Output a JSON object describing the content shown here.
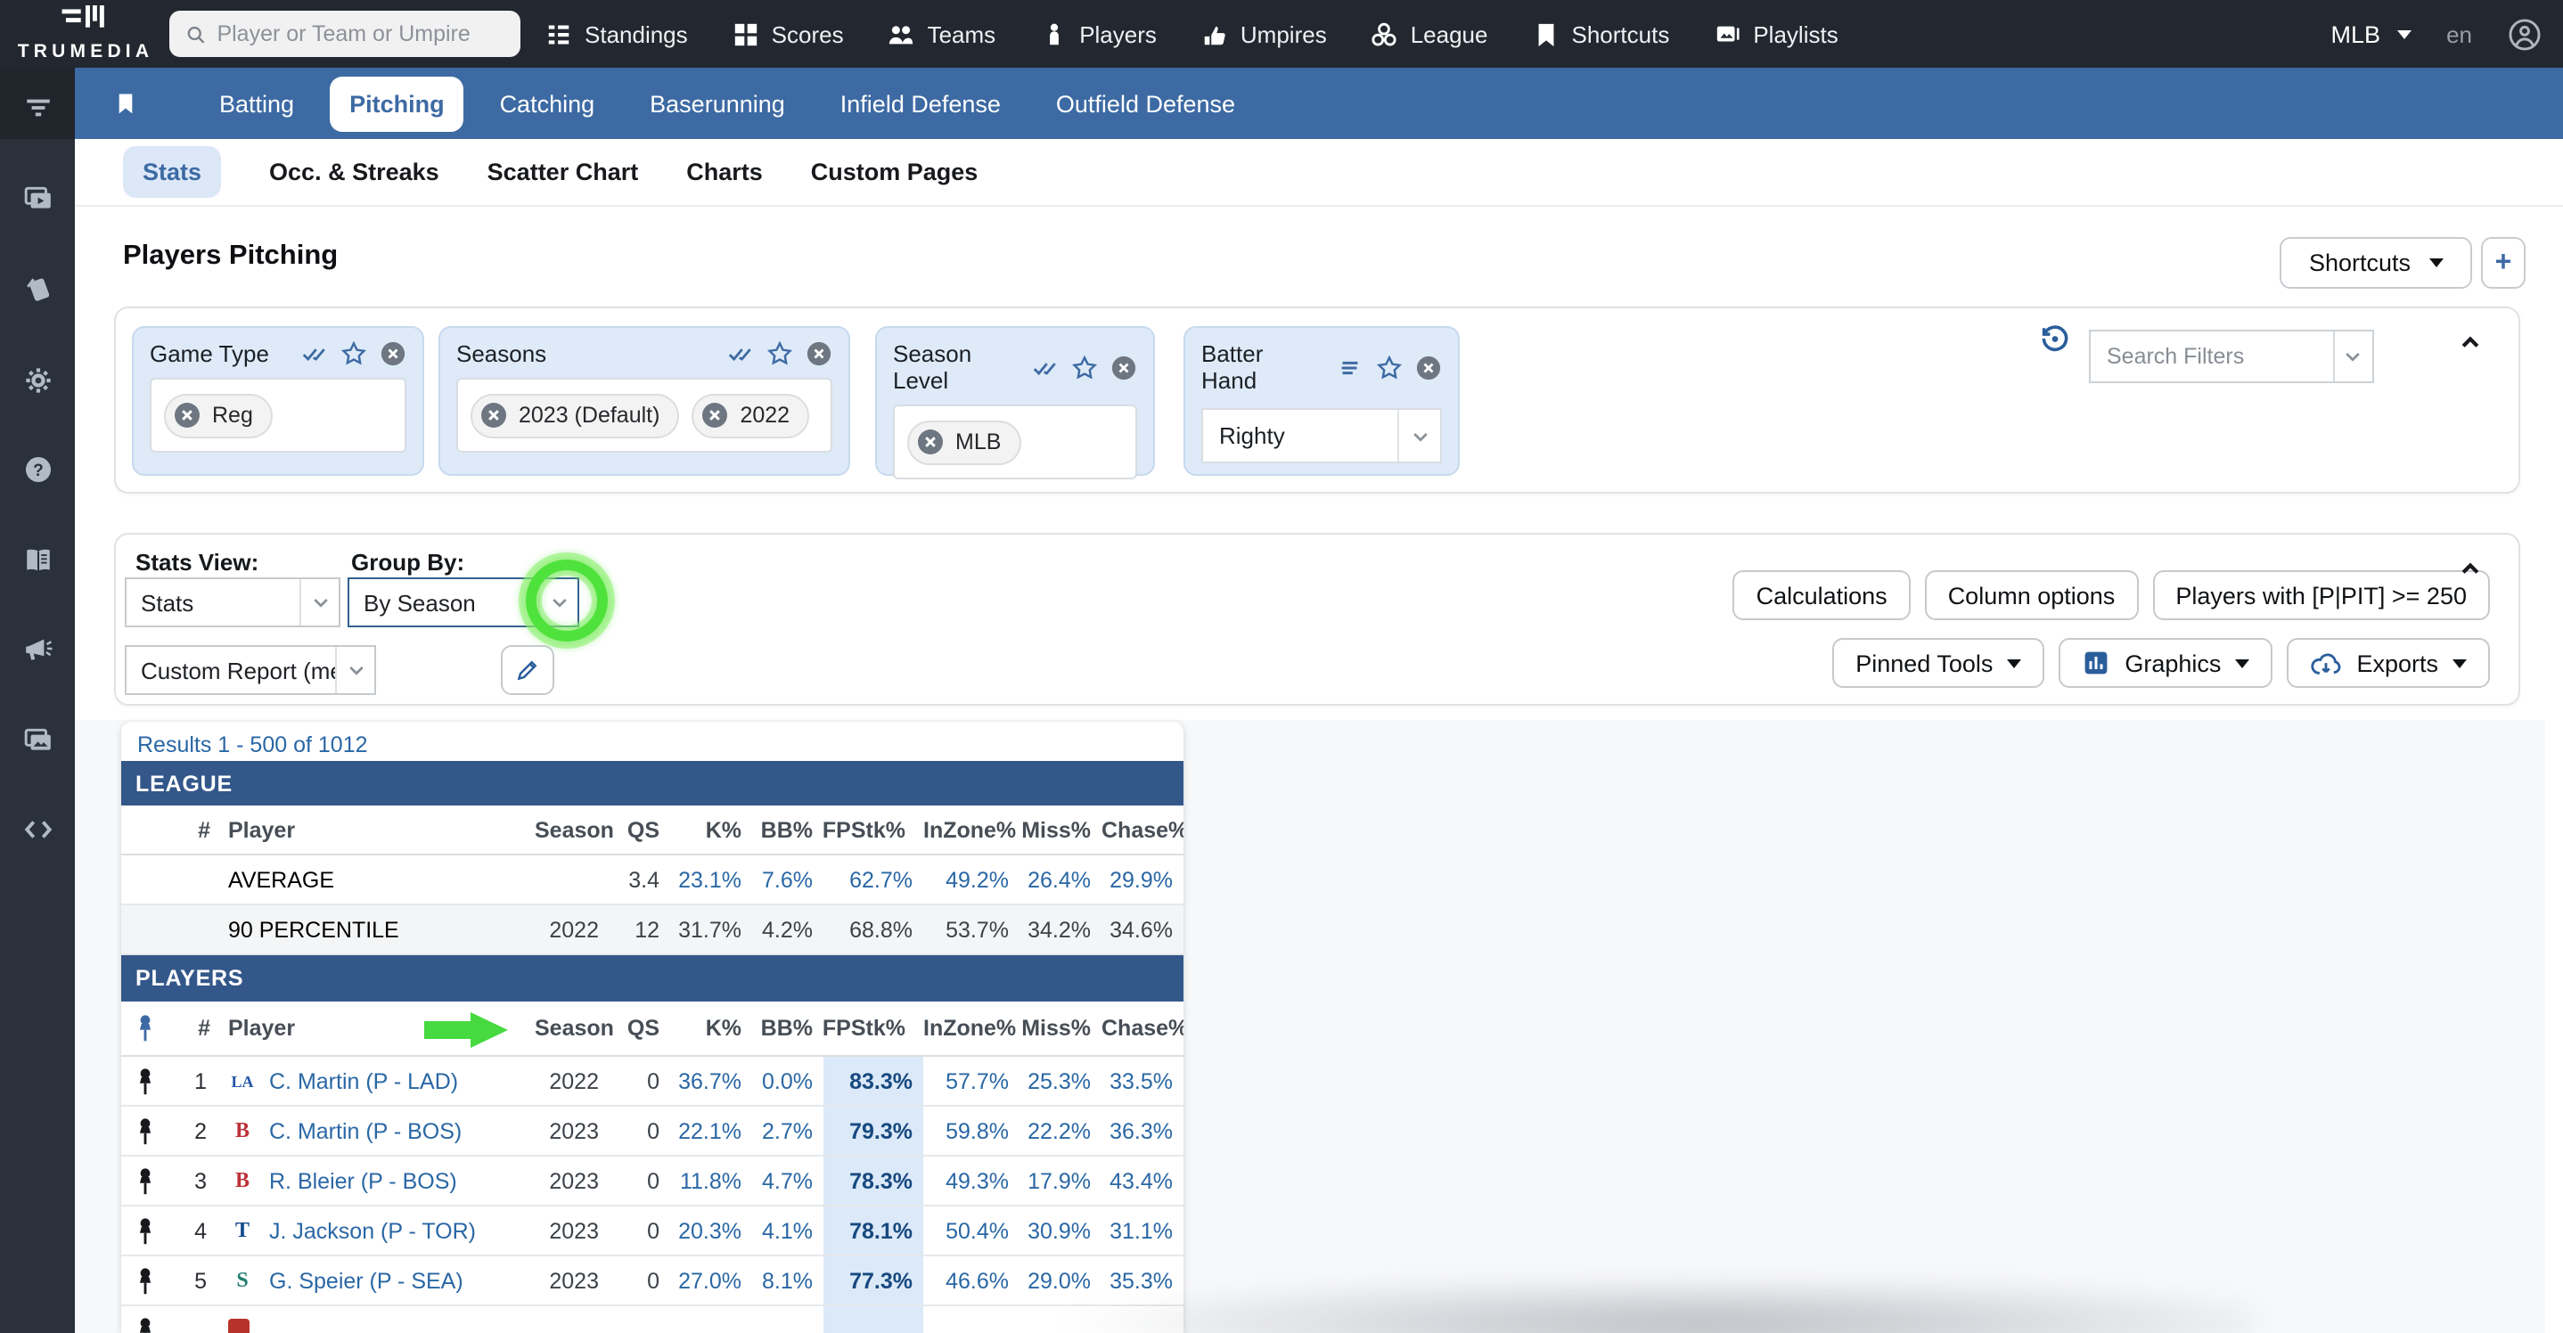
{
  "colors": {
    "topbar": "#23272f",
    "sidebar": "#2b313a",
    "primary_nav_blue": "#3d6aa3",
    "accent_blue": "#3d6aa3",
    "link_blue": "#2a67a5",
    "table_section_blue": "#34578a",
    "highlight_column": "#dbe9f8",
    "filter_card_blue": "#deeaf8",
    "annotation_green": "#50e23c"
  },
  "topbar": {
    "brand": "TRUMEDIA",
    "search": {
      "placeholder": "Player or Team or Umpire"
    },
    "nav": [
      {
        "label": "Standings",
        "icon": "standings"
      },
      {
        "label": "Scores",
        "icon": "scores"
      },
      {
        "label": "Teams",
        "icon": "teams"
      },
      {
        "label": "Players",
        "icon": "player"
      },
      {
        "label": "Umpires",
        "icon": "umpire"
      },
      {
        "label": "League",
        "icon": "league"
      },
      {
        "label": "Shortcuts",
        "icon": "bookmark"
      },
      {
        "label": "Playlists",
        "icon": "playlists"
      }
    ],
    "league_selector": "MLB",
    "language": "en"
  },
  "sidebar": {
    "icons": [
      "filter",
      "video",
      "cards",
      "gear",
      "help",
      "book",
      "megaphone",
      "images",
      "code"
    ]
  },
  "primary_nav": {
    "active": "Pitching",
    "items": [
      "Batting",
      "Pitching",
      "Catching",
      "Baserunning",
      "Infield Defense",
      "Outfield Defense"
    ]
  },
  "secondary_nav": {
    "active": "Stats",
    "items": [
      "Stats",
      "Occ. & Streaks",
      "Scatter Chart",
      "Charts",
      "Custom Pages"
    ]
  },
  "page": {
    "title": "Players Pitching",
    "shortcuts_button": "Shortcuts",
    "add_button": "+"
  },
  "filters": {
    "cards": [
      {
        "title": "Game Type",
        "chips": [
          "Reg"
        ]
      },
      {
        "title": "Seasons",
        "chips": [
          "2023 (Default)",
          "2022"
        ]
      },
      {
        "title": "Season Level",
        "chips": [
          "MLB"
        ]
      },
      {
        "title": "Batter Hand",
        "selected": "Righty"
      }
    ],
    "search_placeholder": "Search Filters"
  },
  "controls": {
    "stats_view_label": "Stats View:",
    "stats_view_value": "Stats",
    "group_by_label": "Group By:",
    "group_by_value": "By Season",
    "report_value": "Custom Report (me)",
    "calculations": "Calculations",
    "column_options": "Column options",
    "players_filter": "Players with [P|PIT] >= 250",
    "pinned_tools": "Pinned Tools",
    "graphics": "Graphics",
    "exports": "Exports"
  },
  "table": {
    "results": "Results 1 - 500 of 1012",
    "sections": {
      "league": "LEAGUE",
      "players": "PLAYERS"
    },
    "columns": [
      "#",
      "Player",
      "Season",
      "QS",
      "K%",
      "BB%",
      "FPStk%",
      "InZone%",
      "Miss%",
      "Chase%"
    ],
    "sort_column": "FPStk%",
    "league_rows": [
      {
        "label": "AVERAGE",
        "season": "",
        "qs": "3.4",
        "k": "23.1%",
        "bb": "7.6%",
        "fpstk": "62.7%",
        "inzone": "49.2%",
        "miss": "26.4%",
        "chase": "29.9%",
        "link_style": true
      },
      {
        "label": "90 PERCENTILE",
        "season": "2022",
        "qs": "12",
        "k": "31.7%",
        "bb": "4.2%",
        "fpstk": "68.8%",
        "inzone": "53.7%",
        "miss": "34.2%",
        "chase": "34.6%",
        "link_style": false
      }
    ],
    "player_rows": [
      {
        "rank": "1",
        "team_mark": "LA",
        "team_color": "#2457a7",
        "name": "C. Martin (P - LAD)",
        "season": "2022",
        "qs": "0",
        "k": "36.7%",
        "bb": "0.0%",
        "fpstk": "83.3%",
        "inzone": "57.7%",
        "miss": "25.3%",
        "chase": "33.5%",
        "partial": false
      },
      {
        "rank": "2",
        "team_mark": "B",
        "team_color": "#bd3039",
        "name": "C. Martin (P - BOS)",
        "season": "2023",
        "qs": "0",
        "k": "22.1%",
        "bb": "2.7%",
        "fpstk": "79.3%",
        "inzone": "59.8%",
        "miss": "22.2%",
        "chase": "36.3%",
        "partial": false
      },
      {
        "rank": "3",
        "team_mark": "B",
        "team_color": "#bd3039",
        "name": "R. Bleier (P - BOS)",
        "season": "2023",
        "qs": "0",
        "k": "11.8%",
        "bb": "4.7%",
        "fpstk": "78.3%",
        "inzone": "49.3%",
        "miss": "17.9%",
        "chase": "43.4%",
        "partial": false
      },
      {
        "rank": "4",
        "team_mark": "T",
        "team_color": "#134a8e",
        "name": "J. Jackson (P - TOR)",
        "season": "2023",
        "qs": "0",
        "k": "20.3%",
        "bb": "4.1%",
        "fpstk": "78.1%",
        "inzone": "50.4%",
        "miss": "30.9%",
        "chase": "31.1%",
        "partial": false
      },
      {
        "rank": "5",
        "team_mark": "S",
        "team_color": "#247d6f",
        "name": "G. Speier (P - SEA)",
        "season": "2023",
        "qs": "0",
        "k": "27.0%",
        "bb": "8.1%",
        "fpstk": "77.3%",
        "inzone": "46.6%",
        "miss": "29.0%",
        "chase": "35.3%",
        "partial": false
      },
      {
        "rank": "",
        "team_mark": "",
        "team_color": "#b8322c",
        "name": "",
        "season": "",
        "qs": "",
        "k": "",
        "bb": "",
        "fpstk": "",
        "inzone": "",
        "miss": "",
        "chase": "",
        "partial": true
      }
    ]
  }
}
